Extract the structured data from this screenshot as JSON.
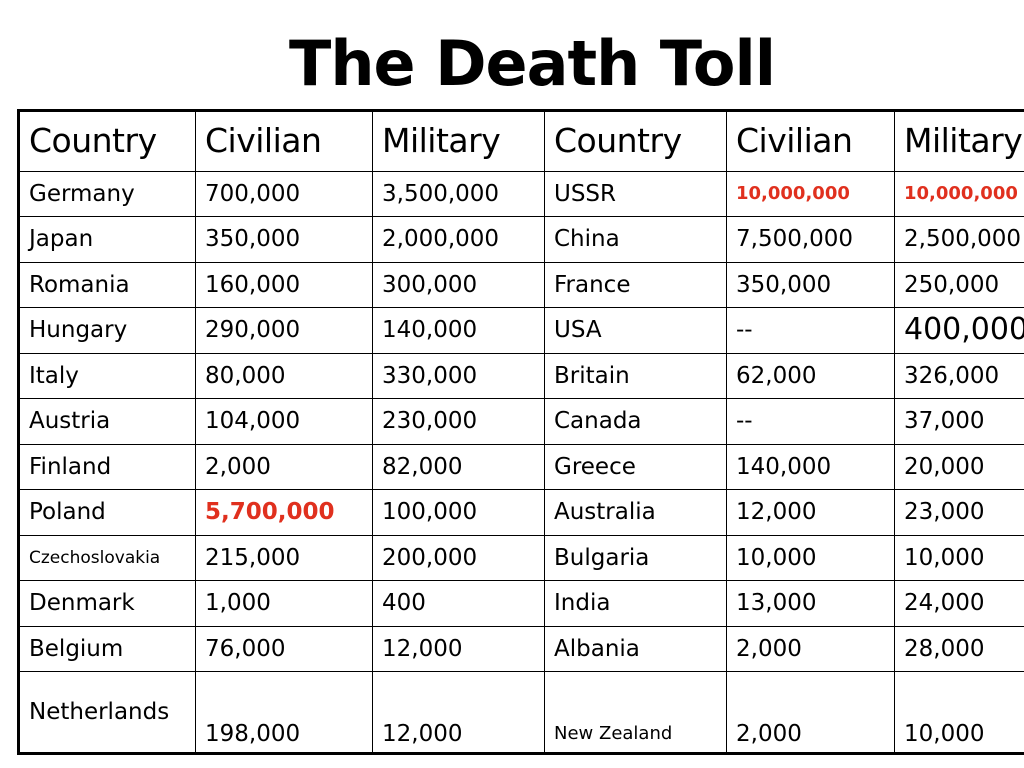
{
  "title": "The Death Toll",
  "headers": [
    "Country",
    "Civilian",
    "Military",
    "Country",
    "Civilian",
    "Military"
  ],
  "rows": [
    [
      "Germany",
      "700,000",
      "3,500,000",
      "USSR",
      "10,000,000",
      "10,000,000"
    ],
    [
      "Japan",
      "350,000",
      "2,000,000",
      "China",
      "7,500,000",
      "2,500,000"
    ],
    [
      "Romania",
      "160,000",
      "300,000",
      "France",
      "350,000",
      "250,000"
    ],
    [
      "Hungary",
      "290,000",
      "140,000",
      "USA",
      "--",
      "400,000"
    ],
    [
      "Italy",
      "80,000",
      "330,000",
      "Britain",
      "62,000",
      "326,000"
    ],
    [
      "Austria",
      "104,000",
      "230,000",
      "Canada",
      "--",
      "37,000"
    ],
    [
      "Finland",
      "2,000",
      "82,000",
      "Greece",
      "140,000",
      "20,000"
    ],
    [
      "Poland",
      "5,700,000",
      "100,000",
      "Australia",
      "12,000",
      "23,000"
    ],
    [
      "Czechoslovakia",
      "215,000",
      "200,000",
      "Bulgaria",
      "10,000",
      "10,000"
    ],
    [
      "Denmark",
      "1,000",
      "400",
      "India",
      "13,000",
      "24,000"
    ],
    [
      "Belgium",
      "76,000",
      "12,000",
      "Albania",
      "2,000",
      "28,000"
    ],
    [
      "Netherlands",
      "198,000",
      "12,000",
      "New Zealand",
      "2,000",
      "10,000"
    ]
  ],
  "colors": {
    "highlight": "#e0301e",
    "text": "#000000",
    "background": "#ffffff"
  }
}
